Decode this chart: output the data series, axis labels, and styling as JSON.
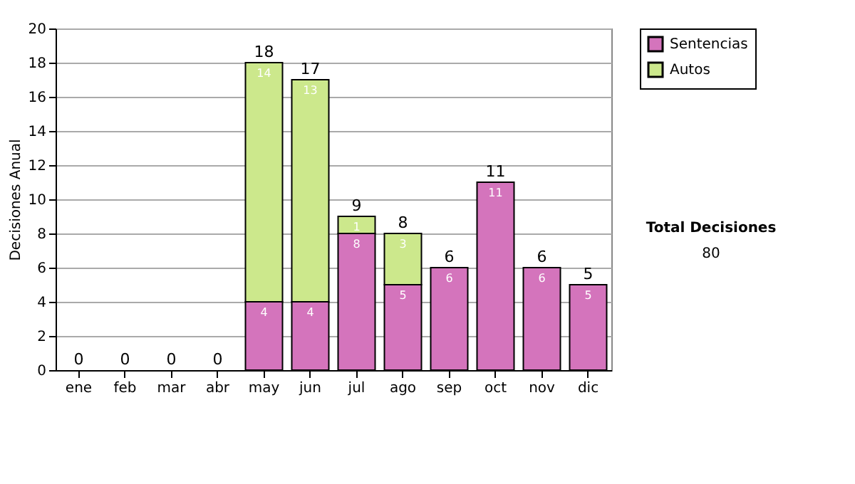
{
  "chart_data": {
    "type": "bar",
    "stacked": true,
    "ylabel": "Decisiones Anual",
    "categories": [
      "ene",
      "feb",
      "mar",
      "abr",
      "may",
      "jun",
      "jul",
      "ago",
      "sep",
      "oct",
      "nov",
      "dic"
    ],
    "series": [
      {
        "name": "Sentencias",
        "color": "#d474bc",
        "values": [
          0,
          0,
          0,
          0,
          4,
          4,
          8,
          5,
          6,
          11,
          6,
          5
        ],
        "value_labels": [
          null,
          null,
          null,
          null,
          "4",
          "4",
          "8",
          "5",
          "6",
          "11",
          "6",
          "5"
        ]
      },
      {
        "name": "Autos",
        "color": "#cce88c",
        "values": [
          null,
          null,
          null,
          null,
          14,
          13,
          1,
          3,
          null,
          null,
          null,
          null
        ],
        "value_labels": [
          null,
          null,
          null,
          null,
          "14",
          "13",
          "1",
          "3",
          null,
          null,
          null,
          null
        ]
      }
    ],
    "totals": [
      "0",
      "0",
      "0",
      "0",
      "18",
      "17",
      "9",
      "8",
      "6",
      "11",
      "6",
      "5"
    ],
    "ylim": [
      0,
      20
    ],
    "yticks": [
      0,
      2,
      4,
      6,
      8,
      10,
      12,
      14,
      16,
      18,
      20
    ],
    "grid": "y",
    "legend": "right",
    "annotations": [
      "Total Decisiones",
      "80"
    ]
  }
}
